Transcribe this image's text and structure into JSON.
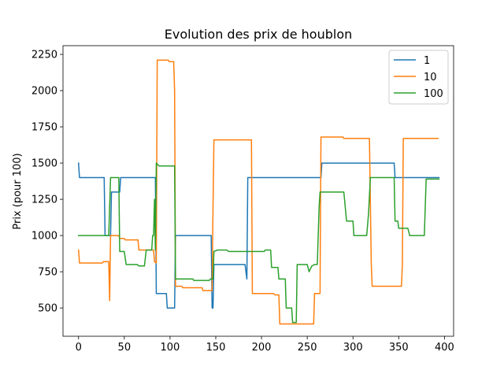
{
  "chart_data": {
    "type": "line",
    "title": "Evolution des prix de houblon",
    "xlabel": "",
    "ylabel": "Prix (pour 100)",
    "xlim": [
      -17,
      410
    ],
    "ylim": [
      305,
      2310
    ],
    "xticks": [
      0,
      50,
      100,
      150,
      200,
      250,
      300,
      350,
      400
    ],
    "yticks": [
      500,
      750,
      1000,
      1250,
      1500,
      1750,
      2000,
      2250
    ],
    "grid": false,
    "legend_position": "top-right",
    "series": [
      {
        "name": "1",
        "color": "#1f77b4",
        "points": [
          [
            0,
            1500
          ],
          [
            1,
            1400
          ],
          [
            28,
            1400
          ],
          [
            29,
            1000
          ],
          [
            35,
            1000
          ],
          [
            36,
            1300
          ],
          [
            45,
            1300
          ],
          [
            46,
            1400
          ],
          [
            84,
            1400
          ],
          [
            85,
            600
          ],
          [
            96,
            600
          ],
          [
            97,
            500
          ],
          [
            105,
            500
          ],
          [
            106,
            1000
          ],
          [
            145,
            1000
          ],
          [
            146,
            500
          ],
          [
            147,
            500
          ],
          [
            148,
            800
          ],
          [
            182,
            800
          ],
          [
            184,
            700
          ],
          [
            185,
            1400
          ],
          [
            265,
            1400
          ],
          [
            266,
            1500
          ],
          [
            345,
            1500
          ],
          [
            346,
            1400
          ],
          [
            394,
            1400
          ]
        ]
      },
      {
        "name": "10",
        "color": "#ff7f0e",
        "points": [
          [
            0,
            900
          ],
          [
            1,
            810
          ],
          [
            26,
            810
          ],
          [
            27,
            820
          ],
          [
            33,
            820
          ],
          [
            34,
            550
          ],
          [
            35,
            1000
          ],
          [
            44,
            1000
          ],
          [
            45,
            980
          ],
          [
            50,
            980
          ],
          [
            51,
            970
          ],
          [
            65,
            970
          ],
          [
            66,
            900
          ],
          [
            82,
            900
          ],
          [
            83,
            820
          ],
          [
            85,
            810
          ],
          [
            86,
            2210
          ],
          [
            98,
            2210
          ],
          [
            99,
            2200
          ],
          [
            104,
            2200
          ],
          [
            105,
            2000
          ],
          [
            106,
            650
          ],
          [
            113,
            650
          ],
          [
            114,
            640
          ],
          [
            135,
            640
          ],
          [
            136,
            620
          ],
          [
            146,
            620
          ],
          [
            147,
            1200
          ],
          [
            148,
            1660
          ],
          [
            189,
            1660
          ],
          [
            190,
            600
          ],
          [
            213,
            600
          ],
          [
            215,
            590
          ],
          [
            219,
            590
          ],
          [
            220,
            390
          ],
          [
            257,
            390
          ],
          [
            258,
            600
          ],
          [
            264,
            600
          ],
          [
            265,
            1680
          ],
          [
            289,
            1680
          ],
          [
            290,
            1670
          ],
          [
            318,
            1670
          ],
          [
            320,
            800
          ],
          [
            321,
            650
          ],
          [
            353,
            650
          ],
          [
            354,
            800
          ],
          [
            355,
            1670
          ],
          [
            393,
            1670
          ]
        ]
      },
      {
        "name": "100",
        "color": "#2ca02c",
        "points": [
          [
            0,
            1000
          ],
          [
            33,
            1000
          ],
          [
            35,
            1400
          ],
          [
            44,
            1400
          ],
          [
            45,
            890
          ],
          [
            50,
            890
          ],
          [
            52,
            800
          ],
          [
            64,
            800
          ],
          [
            66,
            790
          ],
          [
            72,
            790
          ],
          [
            74,
            900
          ],
          [
            80,
            900
          ],
          [
            81,
            1000
          ],
          [
            82,
            1000
          ],
          [
            83,
            1250
          ],
          [
            84,
            900
          ],
          [
            85,
            1500
          ],
          [
            88,
            1480
          ],
          [
            105,
            1480
          ],
          [
            106,
            700
          ],
          [
            125,
            700
          ],
          [
            126,
            690
          ],
          [
            143,
            690
          ],
          [
            144,
            700
          ],
          [
            147,
            700
          ],
          [
            148,
            890
          ],
          [
            152,
            900
          ],
          [
            162,
            900
          ],
          [
            164,
            890
          ],
          [
            203,
            890
          ],
          [
            204,
            900
          ],
          [
            210,
            900
          ],
          [
            211,
            780
          ],
          [
            218,
            780
          ],
          [
            219,
            700
          ],
          [
            226,
            700
          ],
          [
            227,
            500
          ],
          [
            233,
            500
          ],
          [
            234,
            400
          ],
          [
            238,
            400
          ],
          [
            239,
            800
          ],
          [
            250,
            800
          ],
          [
            252,
            750
          ],
          [
            255,
            790
          ],
          [
            258,
            800
          ],
          [
            261,
            800
          ],
          [
            263,
            1200
          ],
          [
            264,
            1300
          ],
          [
            290,
            1300
          ],
          [
            293,
            1100
          ],
          [
            300,
            1100
          ],
          [
            301,
            1000
          ],
          [
            315,
            1000
          ],
          [
            317,
            1150
          ],
          [
            319,
            1400
          ],
          [
            345,
            1400
          ],
          [
            346,
            1100
          ],
          [
            349,
            1100
          ],
          [
            350,
            1050
          ],
          [
            360,
            1050
          ],
          [
            362,
            1000
          ],
          [
            378,
            1000
          ],
          [
            380,
            1390
          ],
          [
            394,
            1390
          ]
        ]
      }
    ]
  }
}
